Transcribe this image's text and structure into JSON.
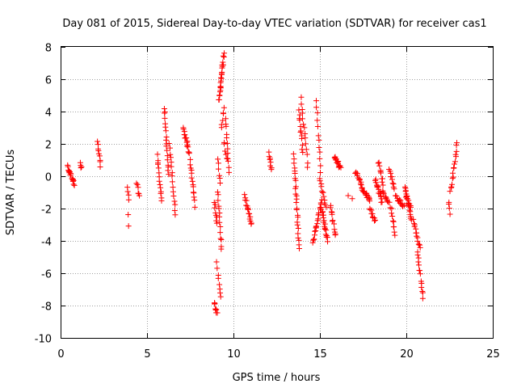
{
  "chart_data": {
    "type": "scatter",
    "title": "Day 081 of 2015, Sidereal Day-to-day VTEC variation (SDTVAR) for receiver cas1",
    "xlabel": "GPS time / hours",
    "ylabel": "SDTVAR / TECUs",
    "xlim": [
      0,
      25
    ],
    "ylim": [
      -10,
      8
    ],
    "xticks": [
      0,
      5,
      10,
      15,
      20,
      25
    ],
    "yticks": [
      -10,
      -8,
      -6,
      -4,
      -2,
      0,
      2,
      4,
      6,
      8
    ],
    "grid": true,
    "marker": "+",
    "color": "#ff0000",
    "segments": [
      {
        "x": [
          0.4,
          0.8
        ],
        "y": [
          0.6,
          -0.5
        ],
        "n": 18
      },
      {
        "x": [
          1.15,
          1.2
        ],
        "y": [
          0.9,
          0.4
        ],
        "n": 4
      },
      {
        "x": [
          2.15,
          2.3
        ],
        "y": [
          2.1,
          0.7
        ],
        "n": 9
      },
      {
        "x": [
          3.85,
          3.95
        ],
        "y": [
          -0.8,
          -1.4
        ],
        "n": 4
      },
      {
        "x": [
          3.9,
          3.95
        ],
        "y": [
          -2.4,
          -3.2
        ],
        "n": 2
      },
      {
        "x": [
          4.4,
          4.55
        ],
        "y": [
          -0.4,
          -1.3
        ],
        "n": 6
      },
      {
        "x": [
          5.6,
          5.85
        ],
        "y": [
          1.3,
          -1.6
        ],
        "n": 14
      },
      {
        "x": [
          6.0,
          6.25
        ],
        "y": [
          4.3,
          0.0
        ],
        "n": 18
      },
      {
        "x": [
          6.3,
          6.65
        ],
        "y": [
          2.0,
          -2.3
        ],
        "n": 16
      },
      {
        "x": [
          7.1,
          7.45
        ],
        "y": [
          3.0,
          1.4
        ],
        "n": 16
      },
      {
        "x": [
          7.5,
          7.75
        ],
        "y": [
          1.0,
          -1.8
        ],
        "n": 14
      },
      {
        "x": [
          8.9,
          9.05
        ],
        "y": [
          -1.6,
          -3.0
        ],
        "n": 8
      },
      {
        "x": [
          8.9,
          9.05
        ],
        "y": [
          -7.8,
          -8.5
        ],
        "n": 8
      },
      {
        "x": [
          9.05,
          9.25
        ],
        "y": [
          -5.4,
          -7.5
        ],
        "n": 8
      },
      {
        "x": [
          9.1,
          9.3
        ],
        "y": [
          -0.9,
          -4.6
        ],
        "n": 14
      },
      {
        "x": [
          9.1,
          9.25
        ],
        "y": [
          1.0,
          -0.4
        ],
        "n": 6
      },
      {
        "x": [
          9.15,
          9.45
        ],
        "y": [
          4.7,
          7.5
        ],
        "n": 24
      },
      {
        "x": [
          9.3,
          9.45
        ],
        "y": [
          3.1,
          4.2
        ],
        "n": 6
      },
      {
        "x": [
          9.45,
          9.65
        ],
        "y": [
          2.1,
          1.0
        ],
        "n": 6
      },
      {
        "x": [
          9.55,
          9.75
        ],
        "y": [
          3.6,
          0.2
        ],
        "n": 12
      },
      {
        "x": [
          10.65,
          11.05
        ],
        "y": [
          -1.2,
          -3.0
        ],
        "n": 16
      },
      {
        "x": [
          12.05,
          12.2
        ],
        "y": [
          1.4,
          0.5
        ],
        "n": 8
      },
      {
        "x": [
          13.5,
          13.8
        ],
        "y": [
          1.3,
          -4.5
        ],
        "n": 26
      },
      {
        "x": [
          13.8,
          14.0
        ],
        "y": [
          4.1,
          1.5
        ],
        "n": 12
      },
      {
        "x": [
          13.9,
          14.3
        ],
        "y": [
          4.9,
          0.6
        ],
        "n": 14
      },
      {
        "x": [
          14.6,
          15.1
        ],
        "y": [
          -4.2,
          -1.4
        ],
        "n": 22
      },
      {
        "x": [
          14.8,
          15.05
        ],
        "y": [
          4.6,
          0.2
        ],
        "n": 12
      },
      {
        "x": [
          15.1,
          15.45
        ],
        "y": [
          -2.0,
          -4.0
        ],
        "n": 18
      },
      {
        "x": [
          15.0,
          15.35
        ],
        "y": [
          -0.2,
          -1.9
        ],
        "n": 12
      },
      {
        "x": [
          15.6,
          15.9
        ],
        "y": [
          -1.8,
          -3.7
        ],
        "n": 12
      },
      {
        "x": [
          15.85,
          16.2
        ],
        "y": [
          1.2,
          0.5
        ],
        "n": 14
      },
      {
        "x": [
          16.65,
          16.85
        ],
        "y": [
          -1.2,
          -1.3
        ],
        "n": 2
      },
      {
        "x": [
          17.05,
          17.35
        ],
        "y": [
          0.3,
          -0.4
        ],
        "n": 10
      },
      {
        "x": [
          17.35,
          17.9
        ],
        "y": [
          -0.6,
          -1.5
        ],
        "n": 20
      },
      {
        "x": [
          17.9,
          18.2
        ],
        "y": [
          -1.9,
          -2.8
        ],
        "n": 10
      },
      {
        "x": [
          18.2,
          18.6
        ],
        "y": [
          -0.2,
          -1.6
        ],
        "n": 16
      },
      {
        "x": [
          18.4,
          18.65
        ],
        "y": [
          0.9,
          -0.5
        ],
        "n": 10
      },
      {
        "x": [
          18.65,
          19.0
        ],
        "y": [
          -1.0,
          -1.6
        ],
        "n": 10
      },
      {
        "x": [
          19.0,
          19.3
        ],
        "y": [
          0.5,
          -0.8
        ],
        "n": 10
      },
      {
        "x": [
          19.1,
          19.35
        ],
        "y": [
          -1.9,
          -3.6
        ],
        "n": 10
      },
      {
        "x": [
          19.4,
          19.85
        ],
        "y": [
          -1.3,
          -1.8
        ],
        "n": 14
      },
      {
        "x": [
          19.9,
          20.3
        ],
        "y": [
          -0.6,
          -2.7
        ],
        "n": 18
      },
      {
        "x": [
          20.0,
          20.25
        ],
        "y": [
          -1.2,
          -2.0
        ],
        "n": 8
      },
      {
        "x": [
          20.4,
          20.8
        ],
        "y": [
          -2.7,
          -4.5
        ],
        "n": 14
      },
      {
        "x": [
          20.65,
          20.95
        ],
        "y": [
          -4.6,
          -7.5
        ],
        "n": 14
      },
      {
        "x": [
          22.45,
          22.55
        ],
        "y": [
          -1.6,
          -2.3
        ],
        "n": 4
      },
      {
        "x": [
          22.55,
          22.95
        ],
        "y": [
          -1.0,
          2.0
        ],
        "n": 16
      }
    ]
  }
}
